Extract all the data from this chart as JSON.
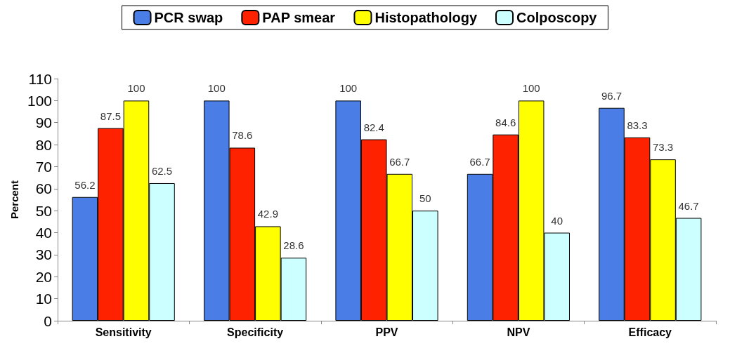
{
  "chart_data": {
    "type": "bar",
    "ylabel": "Percent",
    "categories": [
      "Sensitivity",
      "Specificity",
      "PPV",
      "NPV",
      "Efficacy"
    ],
    "series": [
      {
        "name": "PCR swap",
        "color": "#4a7ee6",
        "values": [
          56.2,
          100,
          100,
          66.7,
          96.7
        ]
      },
      {
        "name": "PAP smear",
        "color": "#ff2200",
        "values": [
          87.5,
          78.6,
          82.4,
          84.6,
          83.3
        ]
      },
      {
        "name": "Histopathology",
        "color": "#ffff00",
        "values": [
          100,
          42.9,
          66.7,
          100,
          73.3
        ]
      },
      {
        "name": "Colposcopy",
        "color": "#ccffff",
        "values": [
          62.5,
          28.6,
          50,
          40,
          46.7
        ]
      }
    ],
    "ylim": [
      0,
      110
    ],
    "yticks": [
      0,
      10,
      20,
      30,
      40,
      50,
      60,
      70,
      80,
      90,
      100,
      110
    ],
    "grid": false,
    "legend": "top",
    "data_labels": true
  }
}
